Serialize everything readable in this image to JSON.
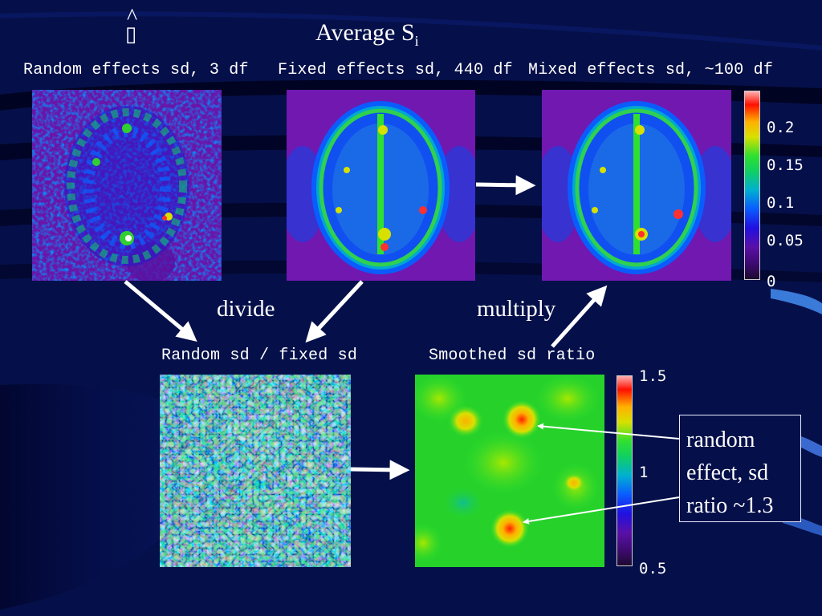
{
  "slide": {
    "hat_glyph": "^",
    "missing_glyph": "▯",
    "title_main": "Average S",
    "title_sub": "i"
  },
  "top_row": {
    "labels": [
      "Random effects sd, 3 df",
      "Fixed effects sd, 440 df",
      "Mixed effects sd, ~100 df"
    ],
    "colorbar_ticks": [
      "0.2",
      "0.15",
      "0.1",
      "0.05",
      "0"
    ]
  },
  "operations": {
    "divide": "divide",
    "multiply": "multiply"
  },
  "bottom_row": {
    "labels": [
      "Random sd / fixed sd",
      "Smoothed sd ratio"
    ],
    "colorbar_ticks": [
      "1.5",
      "1",
      "0.5"
    ]
  },
  "callout": {
    "lines": [
      "random",
      "effect, sd",
      "ratio ~1.3"
    ]
  },
  "colors": {
    "background": "#05104a",
    "arrow": "#ffffff",
    "colormap": [
      "#1a0a28",
      "#3a0a6a",
      "#5a10a8",
      "#2010e0",
      "#0a5cff",
      "#00b0d0",
      "#10d060",
      "#30e030",
      "#d8e000",
      "#ffb000",
      "#ff1000",
      "#ffb0b0"
    ]
  }
}
